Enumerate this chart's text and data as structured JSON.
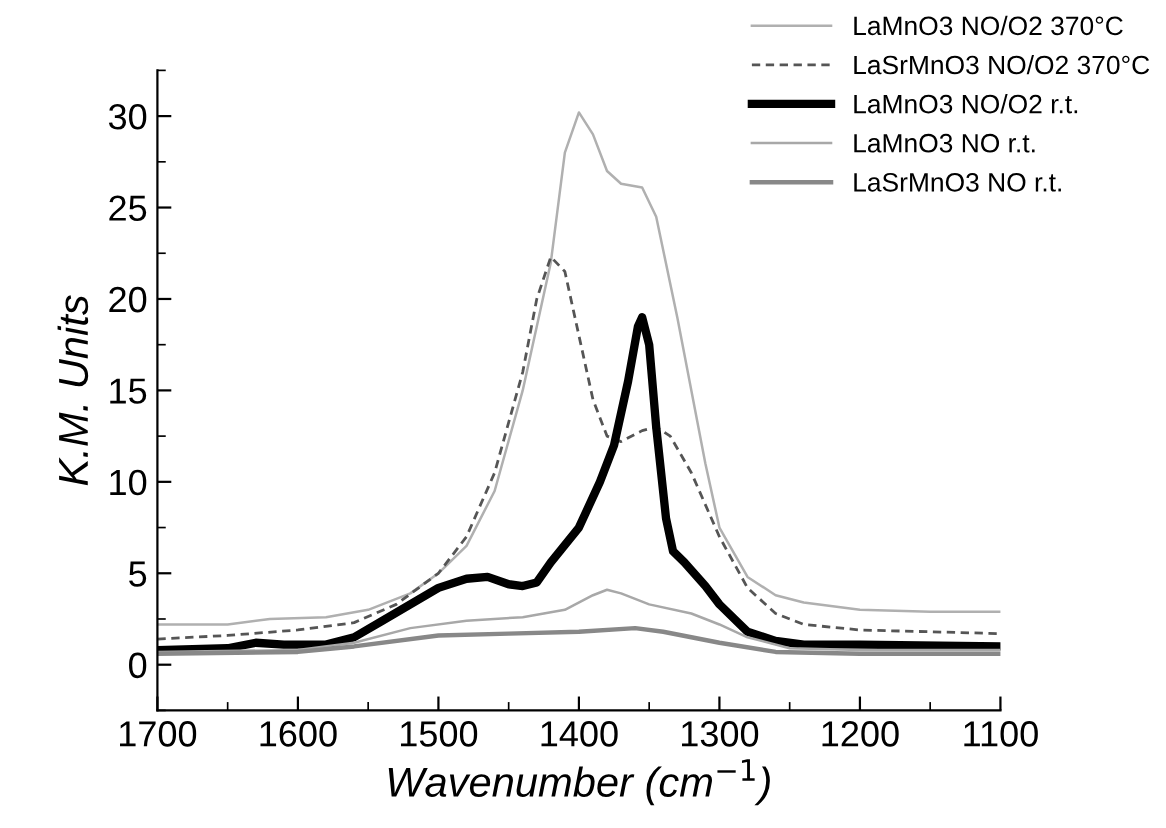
{
  "chart_data": {
    "type": "line",
    "xlabel": "Wavenumber (cm$^{−1}$)",
    "ylabel": "K.M. Units",
    "xlim": [
      1700,
      1100
    ],
    "xticks": [
      1700,
      1600,
      1500,
      1400,
      1300,
      1200,
      1100
    ],
    "ylim": [
      -2.5,
      32.5
    ],
    "yticks": [
      0,
      5,
      10,
      15,
      20,
      25,
      30
    ],
    "grid": false,
    "legend": "top right",
    "marker": "none",
    "series": [
      {
        "name": "LaMnO3 NO/O2 370°C",
        "color": "#b0b0b0",
        "line_style": "solid",
        "x": [
          1700,
          1650,
          1620,
          1580,
          1550,
          1520,
          1500,
          1480,
          1460,
          1440,
          1420,
          1410,
          1400,
          1390,
          1380,
          1370,
          1355,
          1345,
          1330,
          1310,
          1300,
          1280,
          1260,
          1240,
          1200,
          1150,
          1100
        ],
        "values": [
          2.2,
          2.2,
          2.5,
          2.6,
          3.0,
          3.9,
          5.0,
          6.5,
          9.5,
          15,
          22,
          28,
          30.2,
          29,
          27,
          26.3,
          26.1,
          24.5,
          19,
          11,
          7.5,
          4.8,
          3.8,
          3.4,
          3.0,
          2.9,
          2.9
        ]
      },
      {
        "name": "LaSrMnO3 NO/O2 370°C",
        "color": "#555555",
        "line_style": "dashed",
        "x": [
          1700,
          1650,
          1600,
          1560,
          1530,
          1500,
          1480,
          1460,
          1440,
          1430,
          1420,
          1410,
          1400,
          1390,
          1380,
          1370,
          1355,
          1345,
          1335,
          1320,
          1300,
          1280,
          1260,
          1240,
          1200,
          1150,
          1100
        ],
        "values": [
          1.4,
          1.6,
          1.9,
          2.3,
          3.3,
          5,
          7,
          10.5,
          16,
          20,
          22.3,
          21.5,
          18,
          14.5,
          12.5,
          12.2,
          12.8,
          13.0,
          12.5,
          10.5,
          7,
          4.2,
          2.8,
          2.2,
          1.9,
          1.8,
          1.7
        ]
      },
      {
        "name": "LaMnO3 NO/O2 r.t.",
        "color": "#000000",
        "line_style": "solid",
        "x": [
          1700,
          1650,
          1630,
          1610,
          1580,
          1560,
          1540,
          1520,
          1500,
          1480,
          1465,
          1450,
          1440,
          1430,
          1420,
          1400,
          1385,
          1375,
          1365,
          1358,
          1355,
          1350,
          1345,
          1338,
          1333,
          1325,
          1310,
          1300,
          1280,
          1260,
          1240,
          1200,
          1100
        ],
        "values": [
          0.8,
          0.9,
          1.2,
          1.1,
          1.1,
          1.5,
          2.4,
          3.3,
          4.2,
          4.7,
          4.8,
          4.4,
          4.3,
          4.5,
          5.6,
          7.5,
          10,
          12,
          15.5,
          18.5,
          19,
          17.5,
          13,
          8,
          6.2,
          5.6,
          4.3,
          3.3,
          1.8,
          1.3,
          1.1,
          1.1,
          1.0
        ]
      },
      {
        "name": "LaMnO3 NO r.t.",
        "color": "#a8a8a8",
        "line_style": "solid",
        "x": [
          1700,
          1600,
          1560,
          1520,
          1480,
          1440,
          1410,
          1390,
          1380,
          1370,
          1350,
          1320,
          1300,
          1280,
          1250,
          1200,
          1100
        ],
        "values": [
          0.7,
          0.8,
          1.2,
          2.0,
          2.4,
          2.6,
          3.0,
          3.8,
          4.1,
          3.9,
          3.3,
          2.8,
          2.2,
          1.5,
          0.9,
          0.8,
          0.8
        ]
      },
      {
        "name": "LaSrMnO3 NO r.t.",
        "color": "#888888",
        "line_style": "solid",
        "x": [
          1700,
          1600,
          1560,
          1500,
          1450,
          1400,
          1360,
          1340,
          1300,
          1260,
          1200,
          1100
        ],
        "values": [
          0.6,
          0.7,
          1.0,
          1.6,
          1.7,
          1.8,
          2.0,
          1.8,
          1.2,
          0.7,
          0.6,
          0.6
        ]
      }
    ]
  }
}
